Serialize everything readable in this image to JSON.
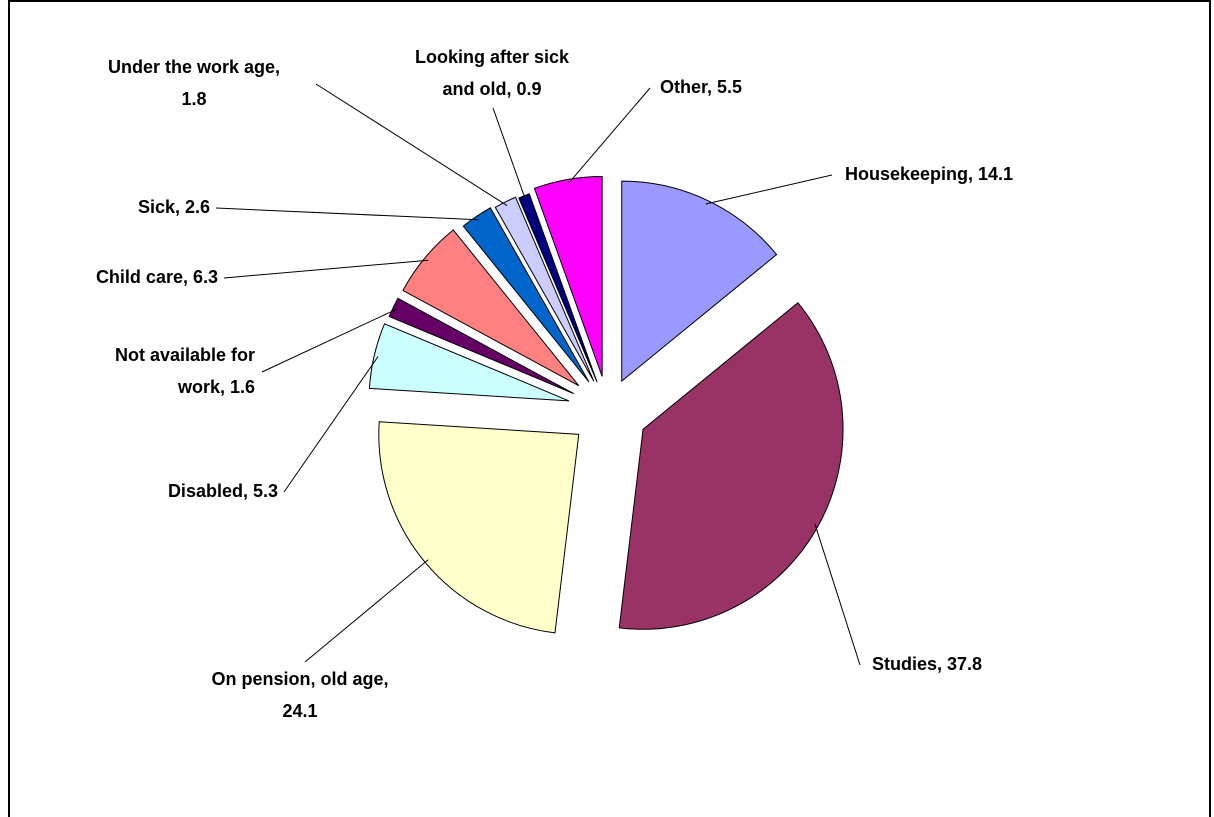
{
  "chart_data": {
    "type": "pie",
    "categories": [
      "Housekeeping",
      "Studies",
      "On pension, old age",
      "Disabled",
      "Not available for work",
      "Child care",
      "Sick",
      "Under the work age",
      "Looking after sick and old",
      "Other"
    ],
    "values": [
      14.1,
      37.8,
      24.1,
      5.3,
      1.6,
      6.3,
      2.6,
      1.8,
      0.9,
      5.5
    ],
    "value_labels": [
      [
        "Housekeeping, 14.1"
      ],
      [
        "Studies, 37.8"
      ],
      [
        "On pension, old age,",
        "24.1"
      ],
      [
        "Disabled, 5.3"
      ],
      [
        "Not available for",
        "work, 1.6"
      ],
      [
        "Child care, 6.3"
      ],
      [
        "Sick, 2.6"
      ],
      [
        "Under the work age,",
        "1.8"
      ],
      [
        "Looking after sick",
        "and old, 0.9"
      ],
      [
        "Other, 5.5"
      ]
    ],
    "colors": [
      "#9999ff",
      "#993366",
      "#ffffcc",
      "#ccffff",
      "#660066",
      "#ff8080",
      "#0066cc",
      "#ccccff",
      "#000080",
      "#ff00ff"
    ]
  }
}
